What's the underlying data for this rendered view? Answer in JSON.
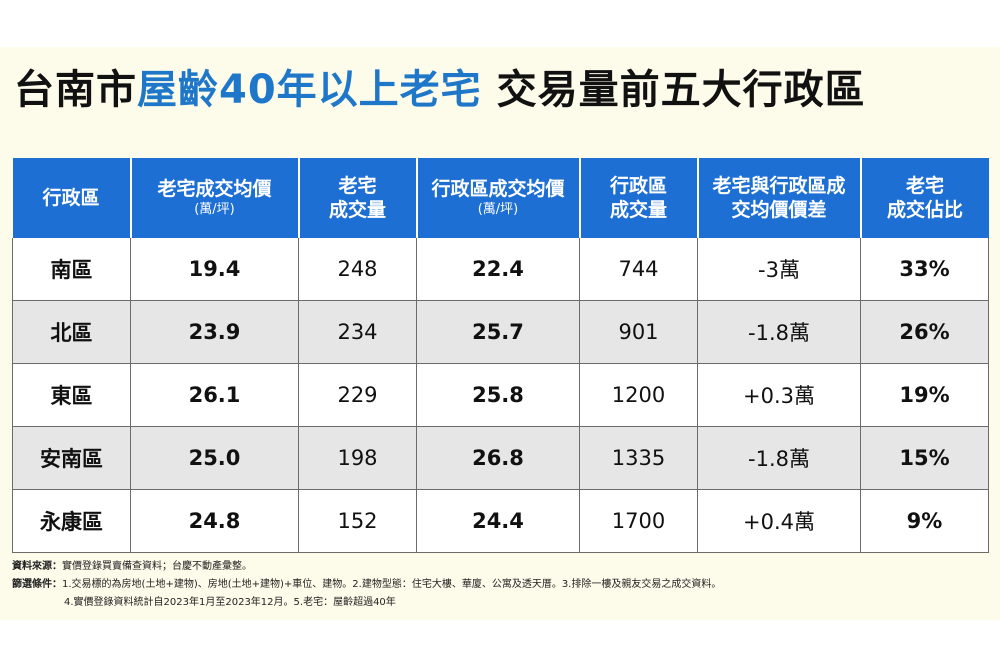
{
  "title": {
    "part1": "台南市",
    "highlight": "屋齡40年以上老宅",
    "part2": " 交易量前五大行政區"
  },
  "headers": [
    {
      "main": "行政區",
      "sub": ""
    },
    {
      "main": "老宅成交均價",
      "sub": "(萬/坪)"
    },
    {
      "main": "老宅",
      "main2": "成交量"
    },
    {
      "main": "行政區成交均價",
      "sub": "(萬/坪)"
    },
    {
      "main": "行政區",
      "main2": "成交量"
    },
    {
      "main": "老宅與行政區成",
      "main2": "交均價價差"
    },
    {
      "main": "老宅",
      "main2": "成交佔比"
    }
  ],
  "rows": [
    {
      "district": "南區",
      "old_price": "19.4",
      "old_volume": "248",
      "dist_price": "22.4",
      "dist_volume": "744",
      "diff": "-3萬",
      "share": "33%"
    },
    {
      "district": "北區",
      "old_price": "23.9",
      "old_volume": "234",
      "dist_price": "25.7",
      "dist_volume": "901",
      "diff": "-1.8萬",
      "share": "26%"
    },
    {
      "district": "東區",
      "old_price": "26.1",
      "old_volume": "229",
      "dist_price": "25.8",
      "dist_volume": "1200",
      "diff": "+0.3萬",
      "share": "19%"
    },
    {
      "district": "安南區",
      "old_price": "25.0",
      "old_volume": "198",
      "dist_price": "26.8",
      "dist_volume": "1335",
      "diff": "-1.8萬",
      "share": "15%"
    },
    {
      "district": "永康區",
      "old_price": "24.8",
      "old_volume": "152",
      "dist_price": "24.4",
      "dist_volume": "1700",
      "diff": "+0.4萬",
      "share": "9%"
    }
  ],
  "footer": {
    "source_label": "資料來源：",
    "source_text": "實價登錄買賣備查資料；台慶不動產彙整。",
    "filter_label": "篩選條件：",
    "filter_line1": "1.交易標的為房地(土地+建物)、房地(土地+建物)+車位、建物。2.建物型態：住宅大樓、華廈、公寓及透天厝。3.排除一樓及親友交易之成交資料。",
    "filter_line2": "4.實價登錄資料統計自2023年1月至2023年12月。5.老宅：屋齡超過40年"
  },
  "colors": {
    "header_blue": "#1d6fd3",
    "title_blue": "#1f77c9",
    "accent_red": "#c8203b"
  }
}
